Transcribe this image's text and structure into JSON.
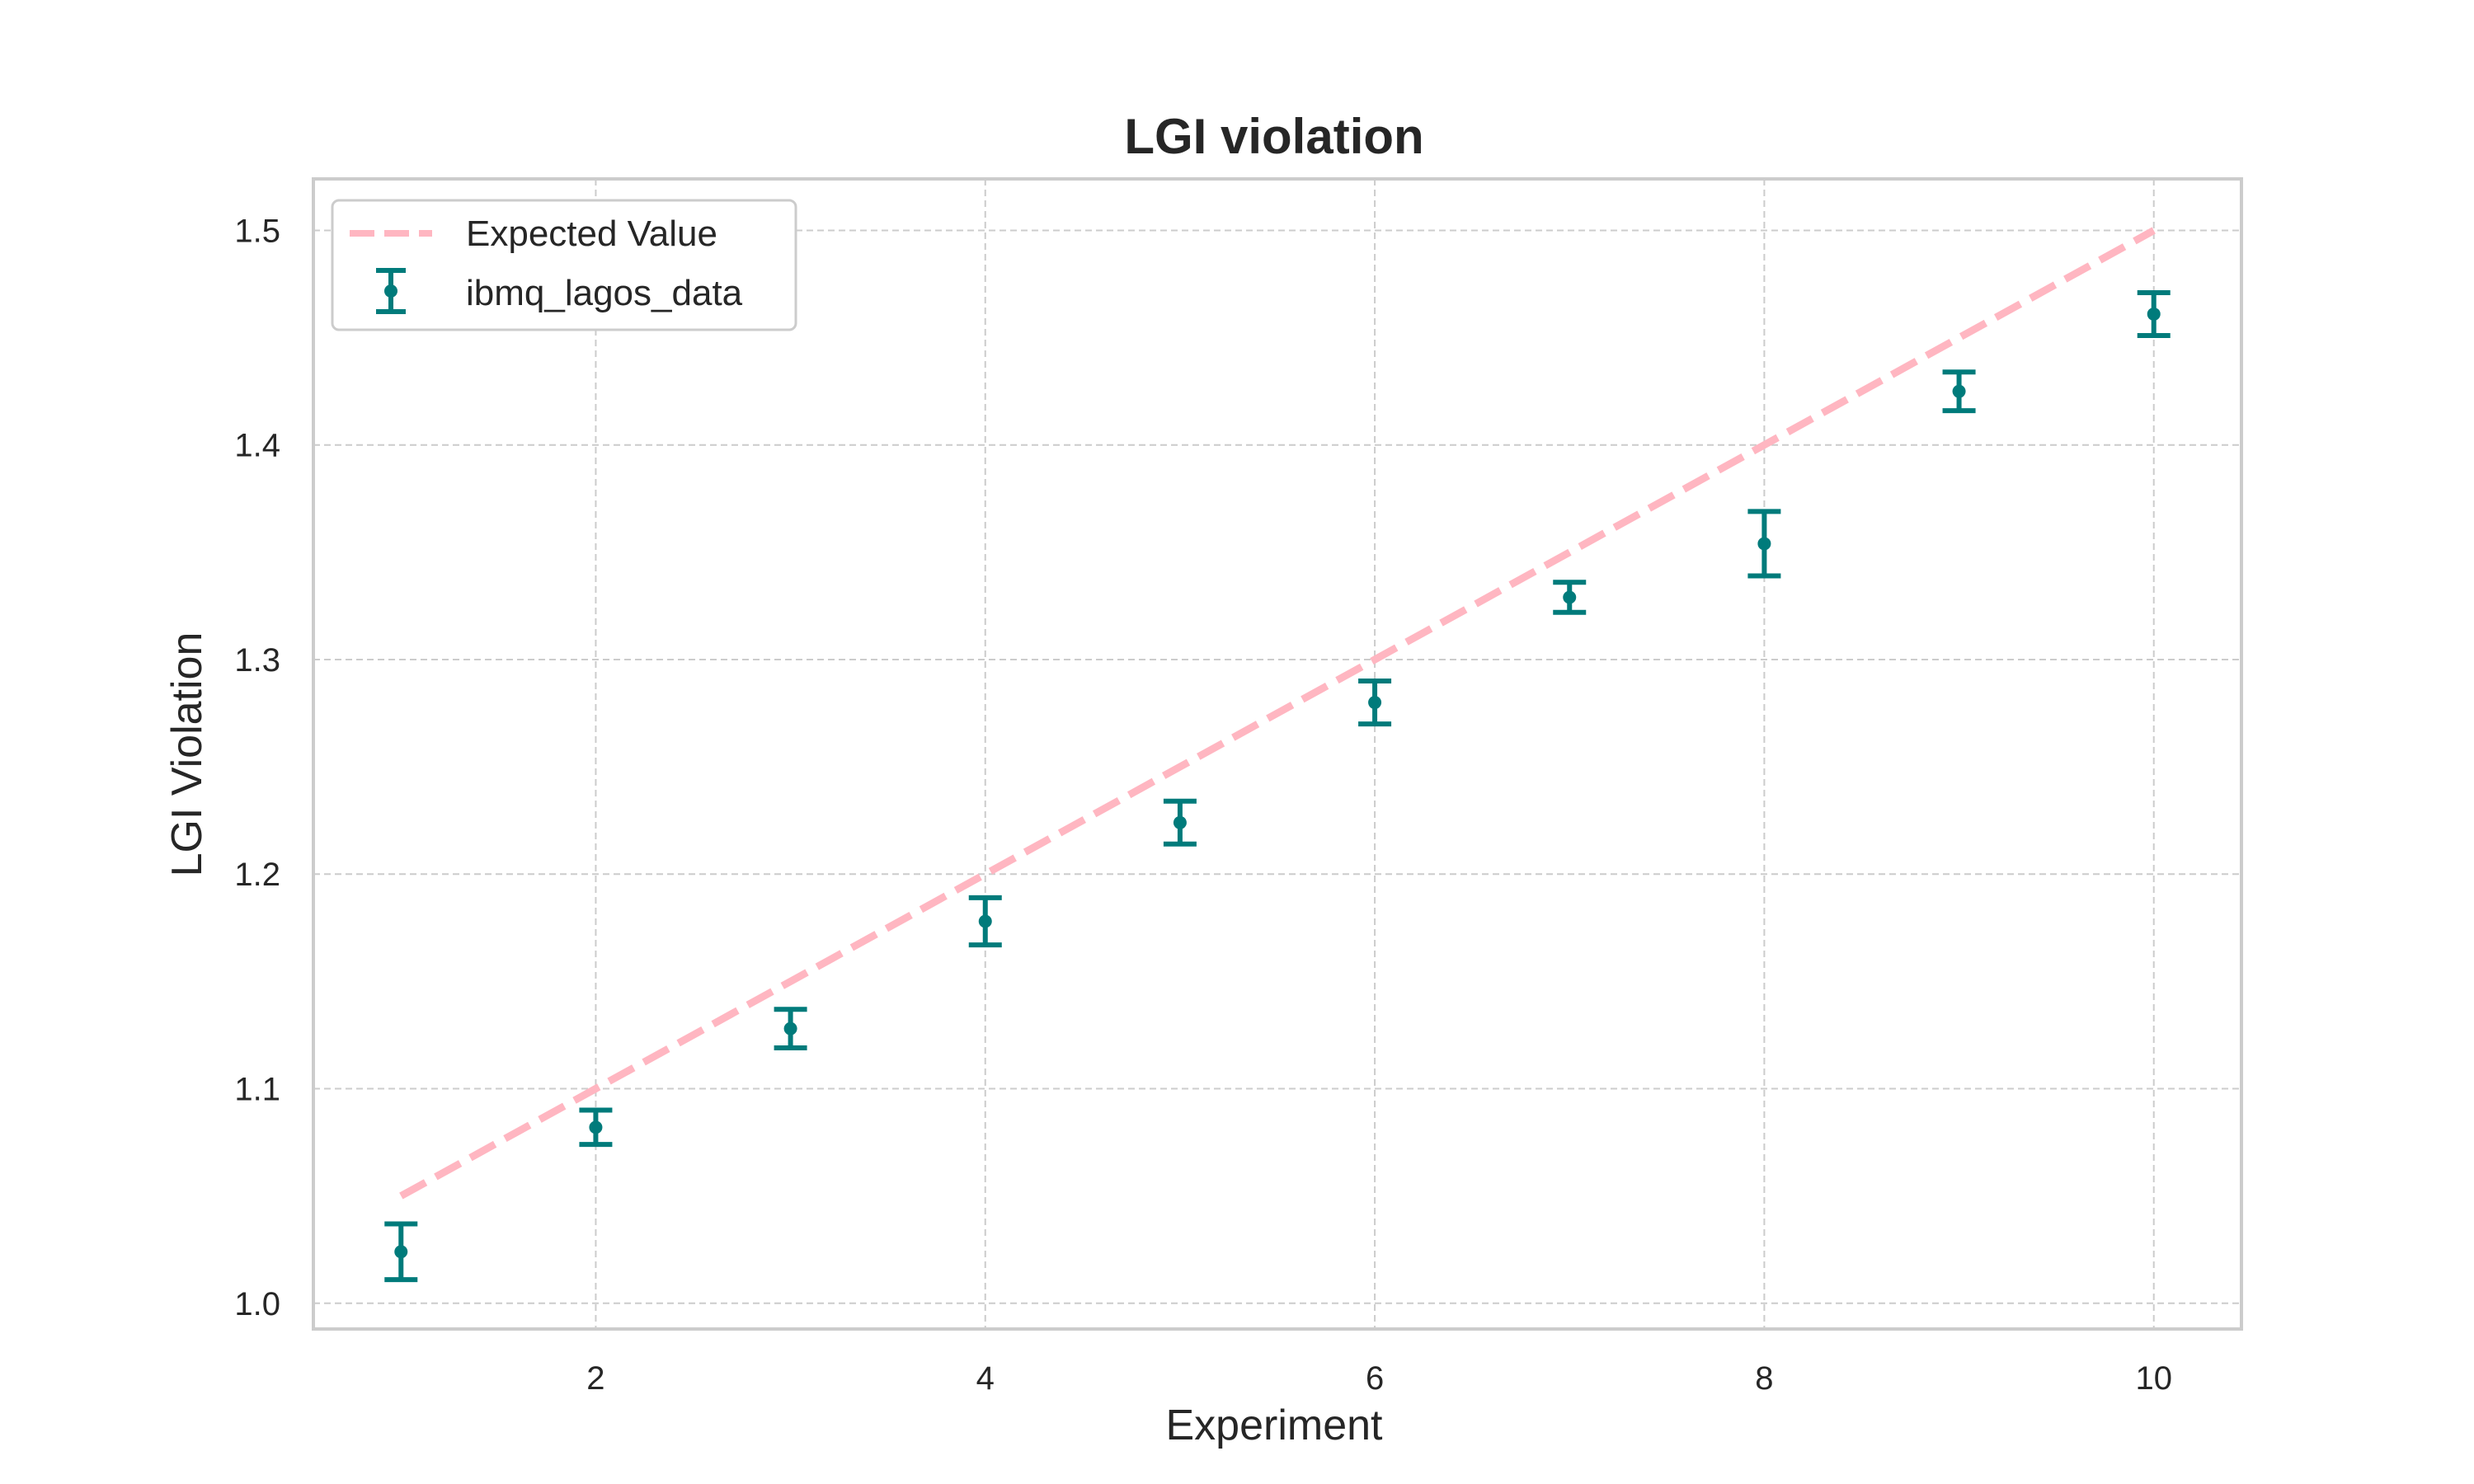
{
  "chart_data": {
    "type": "scatter",
    "title": "LGI violation",
    "xlabel": "Experiment",
    "ylabel": "LGI Violation",
    "xlim": [
      0.55,
      10.45
    ],
    "ylim": [
      0.988,
      1.524
    ],
    "xticks": [
      2,
      4,
      6,
      8,
      10
    ],
    "yticks": [
      1.0,
      1.1,
      1.2,
      1.3,
      1.4,
      1.5
    ],
    "grid": true,
    "legend_position": "top-left",
    "series": [
      {
        "name": "Expected Value",
        "kind": "line",
        "style": "dashed",
        "color": "#ffb6c1",
        "x": [
          1,
          2,
          3,
          4,
          5,
          6,
          7,
          8,
          9,
          10
        ],
        "y": [
          1.05,
          1.1,
          1.15,
          1.2,
          1.25,
          1.3,
          1.35,
          1.4,
          1.45,
          1.5
        ]
      },
      {
        "name": "ibmq_lagos_data",
        "kind": "errorbar",
        "color": "#007b7b",
        "x": [
          1,
          2,
          3,
          4,
          5,
          6,
          7,
          8,
          9,
          10
        ],
        "y": [
          1.024,
          1.082,
          1.128,
          1.178,
          1.224,
          1.28,
          1.329,
          1.354,
          1.425,
          1.461
        ],
        "yerr": [
          0.013,
          0.008,
          0.009,
          0.011,
          0.01,
          0.01,
          0.007,
          0.015,
          0.009,
          0.01
        ]
      }
    ]
  }
}
